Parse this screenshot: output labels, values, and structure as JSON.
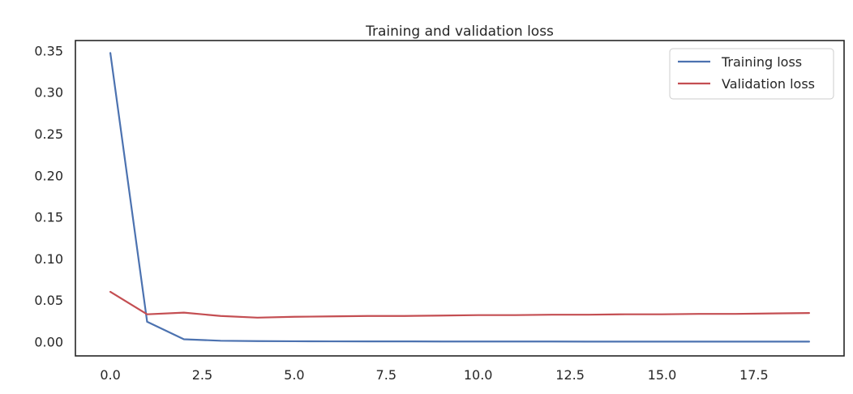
{
  "chart_data": {
    "type": "line",
    "title": "Training and validation loss",
    "xlabel": "",
    "ylabel": "",
    "xlim": [
      -0.95,
      19.95
    ],
    "ylim": [
      -0.017,
      0.362
    ],
    "xticks": [
      0,
      2.5,
      5,
      7.5,
      10,
      12.5,
      15,
      17.5
    ],
    "xtick_labels": [
      "0.0",
      "2.5",
      "5.0",
      "7.5",
      "10.0",
      "12.5",
      "15.0",
      "17.5"
    ],
    "yticks": [
      0,
      0.05,
      0.1,
      0.15,
      0.2,
      0.25,
      0.3,
      0.35
    ],
    "ytick_labels": [
      "0.00",
      "0.05",
      "0.10",
      "0.15",
      "0.20",
      "0.25",
      "0.30",
      "0.35"
    ],
    "grid": false,
    "legend_position": "top-right",
    "x": [
      0,
      1,
      2,
      3,
      4,
      5,
      6,
      7,
      8,
      9,
      10,
      11,
      12,
      13,
      14,
      15,
      16,
      17,
      18,
      19
    ],
    "series": [
      {
        "name": "Training loss",
        "color": "#4c72b0",
        "values": [
          0.347,
          0.024,
          0.003,
          0.0012,
          0.0008,
          0.0006,
          0.0005,
          0.0004,
          0.0004,
          0.0003,
          0.0003,
          0.0003,
          0.0003,
          0.0002,
          0.0002,
          0.0002,
          0.0002,
          0.0002,
          0.0002,
          0.0002
        ]
      },
      {
        "name": "Validation loss",
        "color": "#c44e52",
        "values": [
          0.06,
          0.033,
          0.035,
          0.031,
          0.029,
          0.03,
          0.0305,
          0.031,
          0.031,
          0.0315,
          0.032,
          0.032,
          0.0325,
          0.0325,
          0.033,
          0.033,
          0.0335,
          0.0335,
          0.034,
          0.0345
        ]
      }
    ]
  }
}
